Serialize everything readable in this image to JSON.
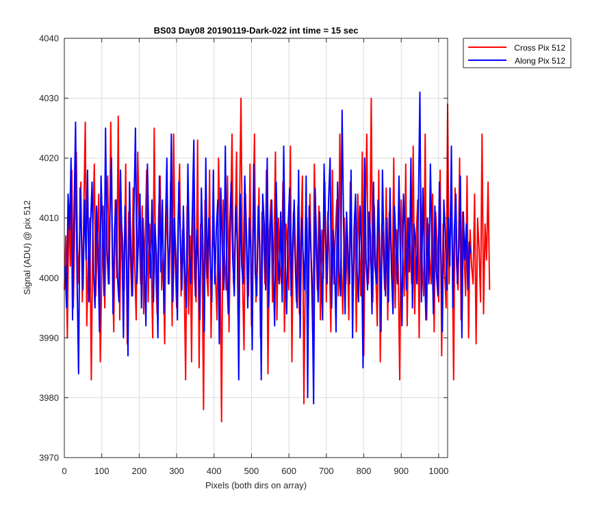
{
  "chart_data": {
    "type": "line",
    "title": "BS03 Day08 20190119-Dark-022 int time = 15 sec",
    "xlabel": "Pixels (both dirs on array)",
    "ylabel": "Signal (ADU) @ pix 512",
    "xlim": [
      0,
      1024
    ],
    "ylim": [
      3970,
      4040
    ],
    "xticks": [
      0,
      100,
      200,
      300,
      400,
      500,
      600,
      700,
      800,
      900,
      1000
    ],
    "yticks": [
      3970,
      3980,
      3990,
      4000,
      4010,
      4020,
      4030,
      4040
    ],
    "grid": true,
    "legend_position": "outside-top-right",
    "series": [
      {
        "name": "Cross Pix 512",
        "color": "#ff0000",
        "x_step": 4,
        "x_start": 0,
        "values": [
          3998,
          4007,
          3990,
          4012,
          4002,
          4018,
          3995,
          4009,
          4021,
          3999,
          4005,
          4016,
          3996,
          4011,
          4026,
          3992,
          4003,
          4010,
          3983,
          4008,
          4019,
          3997,
          4006,
          4014,
          3986,
          4001,
          4012,
          3995,
          4009,
          4017,
          3999,
          4026,
          4004,
          3991,
          4013,
          4000,
          4027,
          3993,
          4010,
          4006,
          3998,
          4019,
          3989,
          4011,
          4004,
          3997,
          4015,
          4002,
          3993,
          4021,
          4008,
          3999,
          4012,
          3994,
          4007,
          4018,
          3996,
          4009,
          4003,
          3990,
          4025,
          4001,
          3994,
          4011,
          4017,
          3998,
          4004,
          3989,
          4013,
          4006,
          3999,
          4016,
          3992,
          4024,
          4003,
          3995,
          4010,
          4019,
          3997,
          4008,
          4001,
          3983,
          4012,
          3994,
          4007,
          3986,
          4015,
          4000,
          3996,
          4023,
          3985,
          4009,
          4003,
          3978,
          4013,
          4001,
          3997,
          4018,
          3990,
          4008,
          4005,
          4000,
          3993,
          4020,
          4007,
          3976,
          4013,
          4003,
          3998,
          4017,
          3991,
          4009,
          4024,
          3999,
          4006,
          4021,
          3994,
          4011,
          4030,
          4000,
          3988,
          4014,
          4004,
          3997,
          4019,
          3992,
          4009,
          4024,
          3996,
          4003,
          4015,
          3990,
          4011,
          4007,
          3999,
          4018,
          3984,
          4008,
          4013,
          3996,
          4005,
          4021,
          3993,
          4010,
          4002,
          3999,
          4016,
          3991,
          4009,
          4006,
          3998,
          4022,
          3986,
          4011,
          4004,
          3996,
          4012,
          3994,
          4007,
          4017,
          3979,
          4003,
          4010,
          3995,
          4014,
          4001,
          3990,
          4019,
          4006,
          3998,
          4012,
          3993,
          4008,
          4000,
          4016,
          3996,
          4011,
          4004,
          3991,
          4018,
          3999,
          4007,
          4013,
          3997,
          4024,
          4002,
          3994,
          4010,
          3999,
          4006,
          3993,
          4016,
          4003,
          3998,
          4011,
          3991,
          4014,
          4005,
          3997,
          4021,
          3987,
          4010,
          4024,
          3999,
          4004,
          4030,
          3996,
          4012,
          4001,
          3992,
          4018,
          3986,
          4009,
          4004,
          3998,
          4015,
          3993,
          4011,
          4006,
          3999,
          4020,
          3995,
          4008,
          4002,
          3983,
          4013,
          4004,
          3997,
          4019,
          3992,
          4010,
          4005,
          3999,
          4022,
          3994,
          4007,
          4013,
          3990,
          4016,
          4002,
          3997,
          4024,
          3993,
          4009,
          4003,
          3999,
          4014,
          3991,
          4011,
          4006,
          3996,
          4018,
          3987,
          4009,
          4001,
          3995,
          4029,
          3999,
          4012,
          4006,
          3983,
          4015,
          4002,
          3998,
          4020,
          3993,
          4011,
          4004,
          3997,
          4017,
          3990,
          4008,
          4002,
          3999,
          4014,
          3989,
          4010,
          4005,
          3996,
          4024,
          3994,
          4009,
          4003,
          4016,
          3998
        ]
      },
      {
        "name": "Along Pix 512",
        "color": "#0000ff",
        "x_step": 4,
        "x_start": 2,
        "values": [
          4002,
          3995,
          4014,
          4008,
          4020,
          3993,
          4011,
          4026,
          4000,
          3984,
          4015,
          4006,
          3998,
          4013,
          4003,
          4018,
          3996,
          4009,
          4016,
          4001,
          3995,
          4012,
          4004,
          3991,
          4017,
          4008,
          3997,
          4025,
          4005,
          3999,
          4011,
          4020,
          3994,
          4008,
          4013,
          4000,
          3996,
          4018,
          4006,
          3990,
          4012,
          4003,
          3987,
          4016,
          4004,
          3997,
          4011,
          4025,
          3999,
          4007,
          4014,
          3995,
          4010,
          4002,
          3992,
          4019,
          4006,
          4000,
          4013,
          3996,
          4009,
          4004,
          3990,
          4017,
          4001,
          4013,
          3994,
          4008,
          4020,
          3999,
          4006,
          4024,
          3996,
          4010,
          4003,
          3993,
          4016,
          4007,
          3998,
          4012,
          4001,
          3995,
          4019,
          4004,
          3999,
          4011,
          4023,
          3997,
          4008,
          4002,
          3993,
          4015,
          4006,
          3991,
          4020,
          4000,
          4010,
          4003,
          3996,
          4018,
          3999,
          4008,
          4013,
          3989,
          4015,
          4005,
          3998,
          4022,
          4001,
          3994,
          4009,
          4016,
          4003,
          3997,
          4012,
          4006,
          3983,
          4014,
          4002,
          3999,
          4017,
          4008,
          3995,
          4010,
          4005,
          3988,
          4019,
          4001,
          3997,
          4012,
          4005,
          3983,
          4014,
          4009,
          3998,
          4020,
          3995,
          4007,
          4013,
          4001,
          3992,
          4016,
          4004,
          3999,
          4011,
          3996,
          4022,
          4003,
          3994,
          4009,
          4015,
          3997,
          4006,
          4013,
          4001,
          3995,
          4018,
          3990,
          4010,
          4004,
          3998,
          4017,
          3980,
          4012,
          4006,
          3999,
          3979,
          4015,
          4005,
          3996,
          4011,
          4002,
          3993,
          4019,
          4007,
          3999,
          4013,
          4020,
          3995,
          4008,
          4003,
          3991,
          4016,
          4001,
          3997,
          4028,
          4009,
          3994,
          4011,
          4004,
          3999,
          4018,
          3990,
          4008,
          4014,
          4001,
          3996,
          4012,
          4005,
          3985,
          4020,
          4003,
          3998,
          4011,
          4007,
          3994,
          4016,
          4002,
          3999,
          4013,
          4006,
          3991,
          4018,
          4004,
          3997,
          4010,
          3996,
          4015,
          4001,
          3994,
          4012,
          4006,
          3999,
          4017,
          4003,
          3992,
          4014,
          4008,
          3998,
          4010,
          4001,
          4020,
          3995,
          4009,
          4006,
          3999,
          4012,
          4031,
          3996,
          4015,
          4003,
          3993,
          4010,
          3999,
          4019,
          4006,
          3994,
          4012,
          4001,
          3997,
          4016,
          4004,
          3991,
          4013,
          4007,
          3998,
          4010,
          4002,
          4022,
          3995,
          4008,
          4014,
          3999,
          4005,
          4017,
          3990,
          4011,
          4003,
          4009,
          3998,
          4006,
          4004
        ]
      }
    ]
  }
}
